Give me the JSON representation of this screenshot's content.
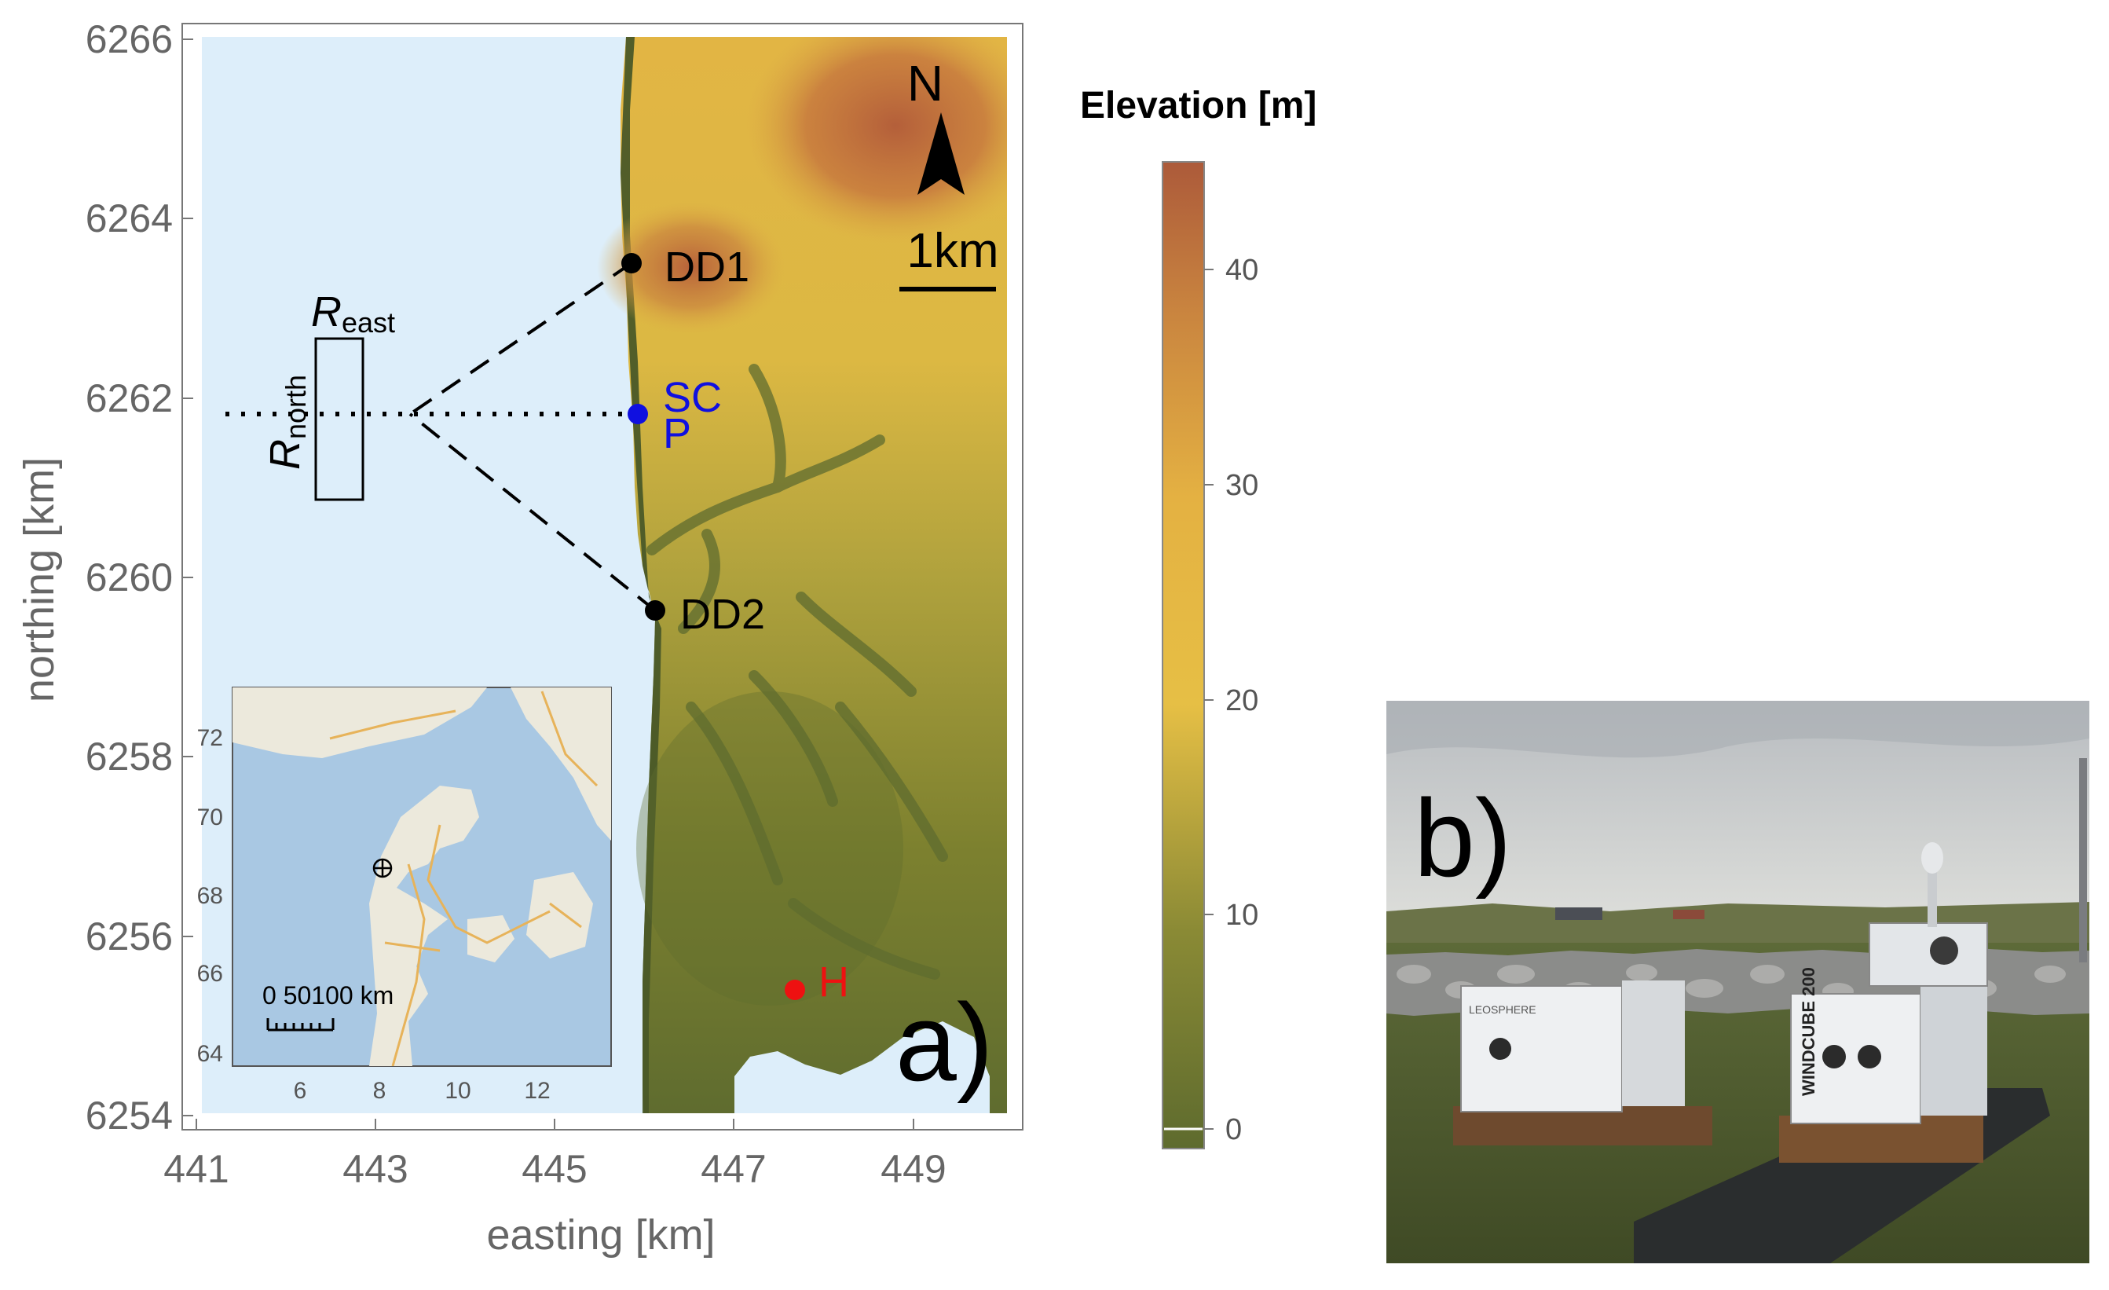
{
  "panel_a": {
    "label": "a)",
    "xaxis": {
      "title": "easting [km]",
      "ticks": [
        "441",
        "443",
        "445",
        "447",
        "449"
      ]
    },
    "yaxis": {
      "title": "northing [km]",
      "ticks": [
        "6254",
        "6256",
        "6258",
        "6260",
        "6262",
        "6264",
        "6266"
      ]
    },
    "north_arrow": "N",
    "scale_bar": "1km",
    "sites": [
      {
        "name": "DD1",
        "color": "#000000"
      },
      {
        "name": "SC",
        "color": "#1010e0"
      },
      {
        "name": "P",
        "color": "#1010e0"
      },
      {
        "name": "DD2",
        "color": "#000000"
      },
      {
        "name": "H",
        "color": "#ee1111"
      }
    ],
    "region_labels": {
      "r_main": "R",
      "r_east_sub": "east",
      "r_north_sub": "north"
    },
    "inset": {
      "x_ticks": [
        "6",
        "8",
        "10",
        "12"
      ],
      "y_ticks": [
        "64",
        "66",
        "68",
        "70",
        "72"
      ],
      "scale_text": "0  50100 km"
    }
  },
  "colorbar": {
    "title": "Elevation [m]",
    "ticks": [
      "0",
      "10",
      "20",
      "30",
      "40"
    ]
  },
  "panel_b": {
    "label": "b)",
    "lidar_label_left": "LEOSPHERE",
    "lidar_label_right": "WINDCUBE 200"
  },
  "colors": {
    "sea": "#ddeefa",
    "inset_sea": "#a9c8e3",
    "land_low": "#5e6b2e",
    "land_mid": "#e6bf45",
    "land_high": "#b0603b"
  }
}
